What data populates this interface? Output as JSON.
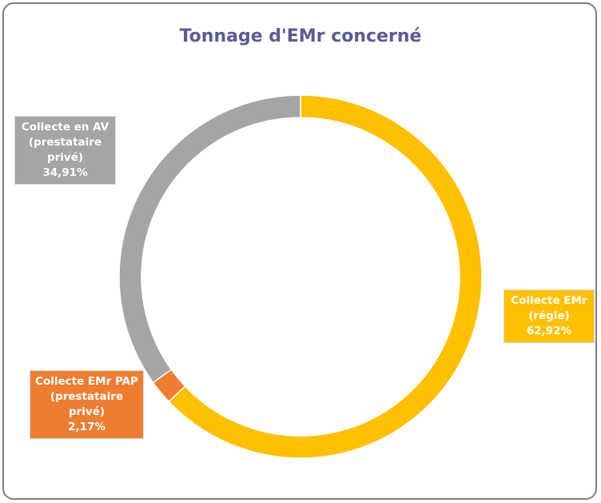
{
  "chart_data": {
    "type": "donut",
    "title": "Tonnage d'EMr concerné",
    "categories": [
      "Collecte EMr (régie)",
      "Collecte EMr PAP (prestataire privé)",
      "Collecte en AV (prestataire privé)"
    ],
    "values": [
      62.92,
      2.17,
      34.91
    ],
    "value_labels": [
      "62,92%",
      "2,17%",
      "34,91%"
    ],
    "colors": [
      "#ffc000",
      "#ed7d31",
      "#a5a5a5"
    ]
  }
}
